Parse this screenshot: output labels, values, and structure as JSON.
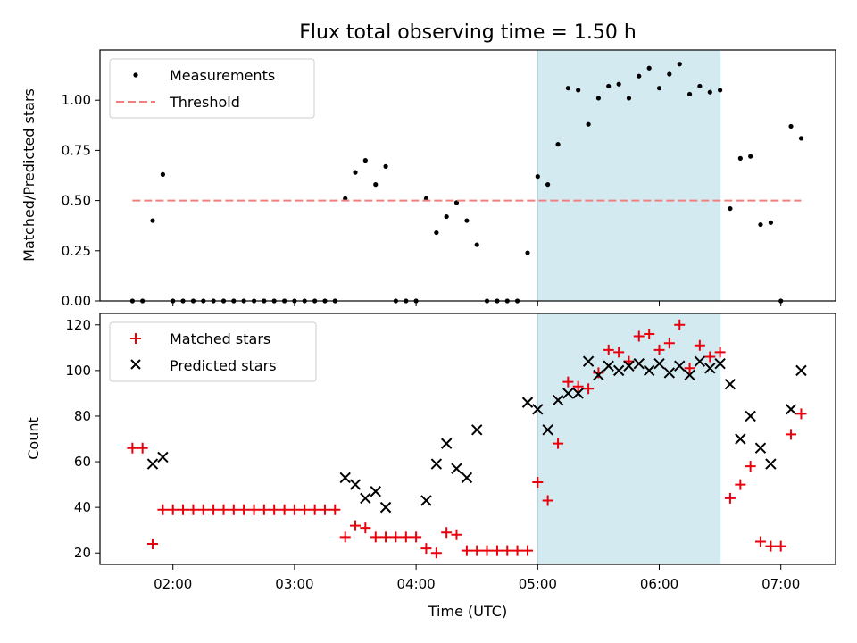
{
  "chart_data": {
    "title": "Flux total observing time = 1.50 h",
    "xlabel": "Time (UTC)",
    "x_tick_labels": [
      "02:00",
      "03:00",
      "04:00",
      "05:00",
      "06:00",
      "07:00"
    ],
    "x_tick_values_h": [
      2,
      3,
      4,
      5,
      6,
      7
    ],
    "xlim_h": [
      1.4,
      7.45
    ],
    "highlight_span_h": [
      5.0,
      6.5
    ],
    "highlight_color": "#d4eaf1",
    "panels": [
      {
        "type": "scatter",
        "ylabel": "Matched/Predicted stars",
        "ylim": [
          0,
          1.25
        ],
        "y_ticks": [
          "0.00",
          "0.25",
          "0.50",
          "0.75",
          "1.00"
        ],
        "y_tick_values": [
          0,
          0.25,
          0.5,
          0.75,
          1.0
        ],
        "legend": {
          "position": "top-left",
          "entries": [
            "Measurements",
            "Threshold"
          ]
        },
        "series": [
          {
            "name": "Measurements",
            "marker": "dot",
            "color": "#000000",
            "x": [
              1.667,
              1.75,
              1.833,
              1.917,
              2.0,
              2.083,
              2.167,
              2.25,
              2.333,
              2.417,
              2.5,
              2.583,
              2.667,
              2.75,
              2.833,
              2.917,
              3.0,
              3.083,
              3.167,
              3.25,
              3.333,
              3.417,
              3.5,
              3.583,
              3.667,
              3.75,
              3.833,
              3.917,
              4.0,
              4.083,
              4.167,
              4.25,
              4.333,
              4.417,
              4.5,
              4.583,
              4.667,
              4.75,
              4.833,
              4.917,
              5.0,
              5.083,
              5.167,
              5.25,
              5.333,
              5.417,
              5.5,
              5.583,
              5.667,
              5.75,
              5.833,
              5.917,
              6.0,
              6.083,
              6.167,
              6.25,
              6.333,
              6.417,
              6.5,
              6.583,
              6.667,
              6.75,
              6.833,
              6.917,
              7.0,
              7.083,
              7.167
            ],
            "y": [
              0,
              0,
              0.4,
              0.63,
              0,
              0,
              0,
              0,
              0,
              0,
              0,
              0,
              0,
              0,
              0,
              0,
              0,
              0,
              0,
              0,
              0,
              0.51,
              0.64,
              0.7,
              0.58,
              0.67,
              0,
              0,
              0,
              0.51,
              0.34,
              0.42,
              0.49,
              0.4,
              0.28,
              0,
              0,
              0,
              0,
              0.24,
              0.62,
              0.58,
              0.78,
              1.06,
              1.05,
              0.88,
              1.01,
              1.07,
              1.08,
              1.01,
              1.12,
              1.16,
              1.06,
              1.13,
              1.18,
              1.03,
              1.07,
              1.04,
              1.05,
              0.46,
              0.71,
              0.72,
              0.38,
              0.39,
              0,
              0.87,
              0.81
            ]
          },
          {
            "name": "Threshold",
            "type": "line",
            "style": "dashed",
            "color": "#f08080",
            "x": [
              1.667,
              7.167
            ],
            "y": [
              0.5,
              0.5
            ]
          }
        ]
      },
      {
        "type": "scatter",
        "ylabel": "Count",
        "ylim": [
          15,
          125
        ],
        "y_ticks": [
          "20",
          "40",
          "60",
          "80",
          "100",
          "120"
        ],
        "y_tick_values": [
          20,
          40,
          60,
          80,
          100,
          120
        ],
        "legend": {
          "position": "top-left",
          "entries": [
            "Matched stars",
            "Predicted stars"
          ]
        },
        "series": [
          {
            "name": "Matched stars",
            "marker": "plus",
            "color": "#e8000b",
            "x": [
              1.667,
              1.75,
              1.833,
              1.917,
              2.0,
              2.083,
              2.167,
              2.25,
              2.333,
              2.417,
              2.5,
              2.583,
              2.667,
              2.75,
              2.833,
              2.917,
              3.0,
              3.083,
              3.167,
              3.25,
              3.333,
              3.417,
              3.5,
              3.583,
              3.667,
              3.75,
              3.833,
              3.917,
              4.0,
              4.083,
              4.167,
              4.25,
              4.333,
              4.417,
              4.5,
              4.583,
              4.667,
              4.75,
              4.833,
              4.917,
              5.0,
              5.083,
              5.167,
              5.25,
              5.333,
              5.417,
              5.5,
              5.583,
              5.667,
              5.75,
              5.833,
              5.917,
              6.0,
              6.083,
              6.167,
              6.25,
              6.333,
              6.417,
              6.5,
              6.583,
              6.667,
              6.75,
              6.833,
              6.917,
              7.0,
              7.083,
              7.167
            ],
            "y": [
              66,
              66,
              24,
              39,
              39,
              39,
              39,
              39,
              39,
              39,
              39,
              39,
              39,
              39,
              39,
              39,
              39,
              39,
              39,
              39,
              39,
              27,
              32,
              31,
              27,
              27,
              27,
              27,
              27,
              22,
              20,
              29,
              28,
              21,
              21,
              21,
              21,
              21,
              21,
              21,
              51,
              43,
              68,
              95,
              93,
              92,
              99,
              109,
              108,
              104,
              115,
              116,
              109,
              112,
              120,
              101,
              111,
              106,
              108,
              44,
              50,
              58,
              25,
              23,
              23,
              72,
              81
            ]
          },
          {
            "name": "Predicted stars",
            "marker": "x",
            "color": "#000000",
            "x": [
              1.833,
              1.917,
              3.417,
              3.5,
              3.583,
              3.667,
              3.75,
              4.083,
              4.167,
              4.25,
              4.333,
              4.417,
              4.5,
              4.917,
              5.0,
              5.083,
              5.167,
              5.25,
              5.333,
              5.417,
              5.5,
              5.583,
              5.667,
              5.75,
              5.833,
              5.917,
              6.0,
              6.083,
              6.167,
              6.25,
              6.333,
              6.417,
              6.5,
              6.583,
              6.667,
              6.75,
              6.833,
              6.917,
              7.083,
              7.167
            ],
            "y": [
              59,
              62,
              53,
              50,
              44,
              47,
              40,
              43,
              59,
              68,
              57,
              53,
              74,
              86,
              83,
              74,
              87,
              90,
              90,
              104,
              98,
              102,
              100,
              102,
              103,
              100,
              103,
              99,
              102,
              98,
              104,
              101,
              103,
              94,
              70,
              80,
              66,
              59,
              83,
              100
            ]
          }
        ]
      }
    ]
  }
}
